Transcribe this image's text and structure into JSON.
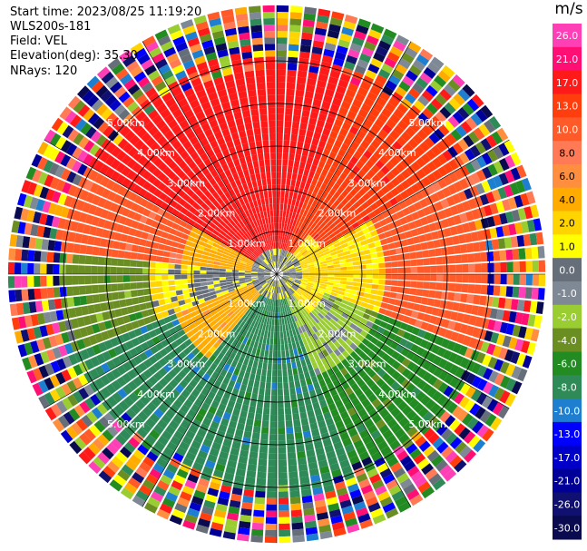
{
  "info": {
    "start_time": "Start time: 2023/08/25 11:19:20",
    "instrument": "WLS200s-181",
    "field": "Field: VEL",
    "elevation": "Elevation(deg): 35.30",
    "nrays": "NRays: 120"
  },
  "chart_data": {
    "type": "heatmap",
    "projection": "polar (PPI)",
    "field": "VEL",
    "units": "m/s",
    "elevation_deg": 35.3,
    "n_rays": 120,
    "range_rings_km": [
      1.0,
      2.0,
      3.0,
      4.0,
      5.0
    ],
    "ring_labels": [
      "1.00km",
      "2.00km",
      "3.00km",
      "4.00km",
      "5.00km"
    ],
    "max_range_km": 6.3,
    "colorbar": {
      "title": "m/s",
      "ticks": [
        "26.0",
        "21.0",
        "17.0",
        "13.0",
        "10.0",
        "8.0",
        "6.0",
        "4.0",
        "2.0",
        "1.0",
        "0.0",
        "-1.0",
        "-2.0",
        "-4.0",
        "-6.0",
        "-8.0",
        "-10.0",
        "-13.0",
        "-17.0",
        "-21.0",
        "-26.0",
        "-30.0"
      ],
      "colors": [
        "#ff3fb6",
        "#ff0f73",
        "#ff1a1a",
        "#ff3d0d",
        "#ff5a28",
        "#ff7a55",
        "#ff8f3f",
        "#ffab00",
        "#ffd400",
        "#ffff00",
        "#666e7a",
        "#7f8895",
        "#9acd32",
        "#6b8e23",
        "#228b22",
        "#2e8b57",
        "#1e7fd0",
        "#0000ff",
        "#0000c8",
        "#000099",
        "#101070",
        "#0a0a50"
      ]
    },
    "pattern": {
      "description_levels_m_s": {
        "northwest_sector": 10.0,
        "north_sector": 17.0,
        "east_near": 2.0,
        "center_band": 0.0,
        "southwest_near": 4.0,
        "south_sector": -8.0,
        "southeast_sector": -6.0,
        "far_gate_noise": "mixed"
      }
    }
  }
}
